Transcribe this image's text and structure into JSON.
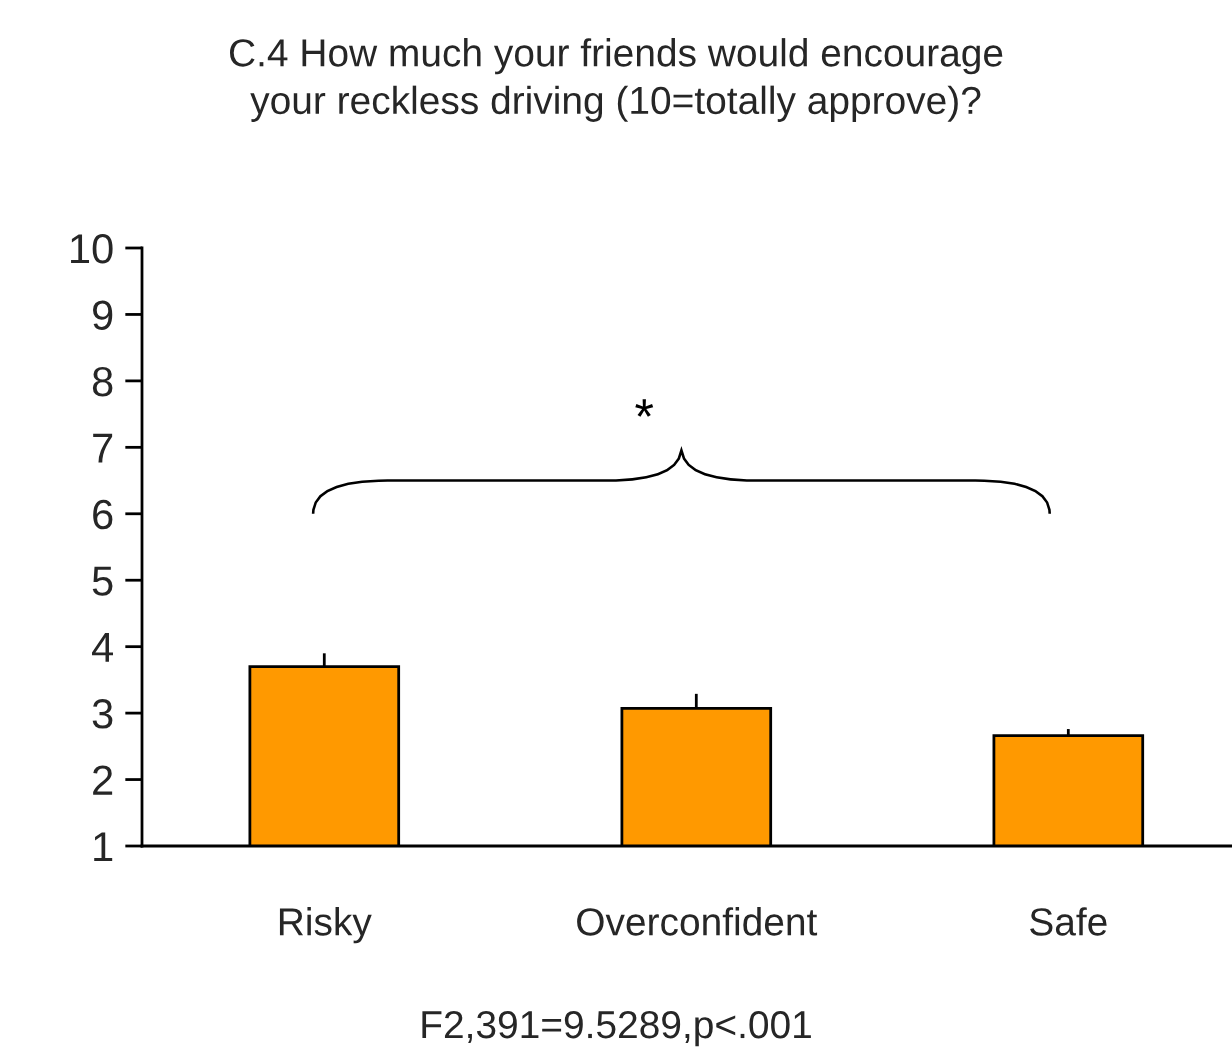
{
  "chart_data": {
    "type": "bar",
    "title": "C.4 How much your friends would encourage\nyour reckless driving (10=totally approve)?",
    "categories": [
      "Risky",
      "Overconfident",
      "Safe"
    ],
    "values": [
      3.7,
      3.07,
      2.66
    ],
    "errors": [
      0.2,
      0.22,
      0.1
    ],
    "color": "#ff9900",
    "ylim": [
      1,
      10
    ],
    "yticks": [
      1,
      2,
      3,
      4,
      5,
      6,
      7,
      8,
      9,
      10
    ],
    "grid": false,
    "legend": false,
    "annotations": [
      "*",
      "F2,391=9.5289,p<.001"
    ]
  }
}
